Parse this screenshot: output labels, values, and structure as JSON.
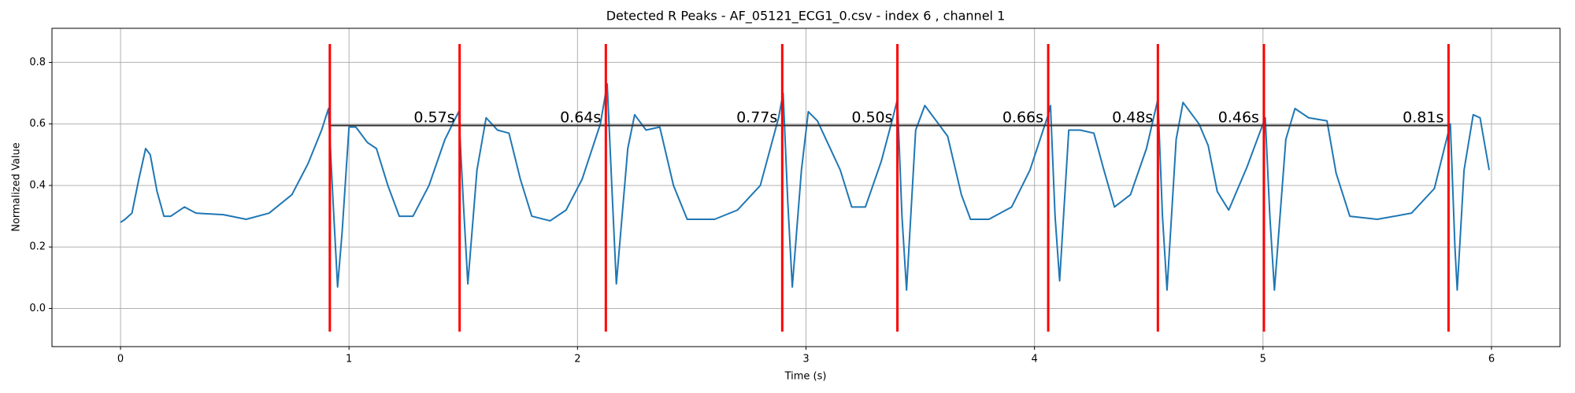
{
  "chart_data": {
    "type": "line",
    "title": "Detected R Peaks - AF_05121_ECG1_0.csv - index 6 , channel 1",
    "xlabel": "Time (s)",
    "ylabel": "Normalized Value",
    "xlim": [
      -0.3,
      6.3
    ],
    "ylim": [
      -0.124,
      0.911
    ],
    "xticks": [
      0,
      1,
      2,
      3,
      4,
      5,
      6
    ],
    "yticks": [
      {
        "value": 0,
        "label": "0.0"
      },
      0.2,
      0.4,
      0.6,
      0.8
    ],
    "grid": true,
    "series": [
      {
        "color": "#1f77b4",
        "x": [
          0,
          0.02,
          0.05,
          0.08,
          0.11,
          0.13,
          0.16,
          0.19,
          0.22,
          0.28,
          0.33,
          0.45,
          0.55,
          0.65,
          0.75,
          0.82,
          0.88,
          0.91,
          0.93,
          0.95,
          0.97,
          1.0,
          1.03,
          1.08,
          1.12,
          1.17,
          1.22,
          1.28,
          1.35,
          1.42,
          1.48,
          1.5,
          1.52,
          1.56,
          1.6,
          1.65,
          1.7,
          1.75,
          1.8,
          1.88,
          1.95,
          2.02,
          2.1,
          2.13,
          2.15,
          2.17,
          2.22,
          2.25,
          2.3,
          2.36,
          2.42,
          2.48,
          2.6,
          2.7,
          2.8,
          2.88,
          2.9,
          2.92,
          2.94,
          2.98,
          3.01,
          3.05,
          3.1,
          3.15,
          3.2,
          3.26,
          3.33,
          3.38,
          3.4,
          3.42,
          3.44,
          3.48,
          3.52,
          3.58,
          3.62,
          3.68,
          3.72,
          3.8,
          3.9,
          3.98,
          4.06,
          4.07,
          4.09,
          4.11,
          4.15,
          4.2,
          4.26,
          4.3,
          4.35,
          4.42,
          4.49,
          4.54,
          4.56,
          4.58,
          4.62,
          4.65,
          4.72,
          4.76,
          4.8,
          4.85,
          4.93,
          5.0,
          5.01,
          5.03,
          5.05,
          5.1,
          5.14,
          5.2,
          5.28,
          5.32,
          5.38,
          5.5,
          5.65,
          5.75,
          5.81,
          5.82,
          5.84,
          5.85,
          5.88,
          5.92,
          5.95,
          5.99
        ],
        "values": [
          0.28,
          0.29,
          0.31,
          0.42,
          0.52,
          0.5,
          0.38,
          0.3,
          0.3,
          0.33,
          0.31,
          0.305,
          0.29,
          0.31,
          0.37,
          0.47,
          0.58,
          0.65,
          0.35,
          0.07,
          0.25,
          0.59,
          0.59,
          0.54,
          0.52,
          0.4,
          0.3,
          0.3,
          0.4,
          0.55,
          0.64,
          0.35,
          0.08,
          0.45,
          0.62,
          0.58,
          0.57,
          0.42,
          0.3,
          0.285,
          0.32,
          0.42,
          0.6,
          0.73,
          0.4,
          0.08,
          0.52,
          0.63,
          0.58,
          0.59,
          0.4,
          0.29,
          0.29,
          0.32,
          0.4,
          0.62,
          0.7,
          0.35,
          0.07,
          0.45,
          0.64,
          0.61,
          0.53,
          0.45,
          0.33,
          0.33,
          0.48,
          0.62,
          0.68,
          0.3,
          0.06,
          0.58,
          0.66,
          0.6,
          0.56,
          0.37,
          0.29,
          0.29,
          0.33,
          0.45,
          0.63,
          0.66,
          0.3,
          0.09,
          0.58,
          0.58,
          0.57,
          0.46,
          0.33,
          0.37,
          0.52,
          0.68,
          0.3,
          0.06,
          0.55,
          0.67,
          0.6,
          0.53,
          0.38,
          0.32,
          0.46,
          0.6,
          0.62,
          0.3,
          0.06,
          0.55,
          0.65,
          0.62,
          0.61,
          0.44,
          0.3,
          0.29,
          0.31,
          0.39,
          0.57,
          0.6,
          0.2,
          0.06,
          0.45,
          0.63,
          0.62,
          0.45
        ]
      }
    ],
    "peaks": {
      "color": "#ff0000",
      "x": [
        0.916,
        1.484,
        2.124,
        2.896,
        3.4,
        4.06,
        4.54,
        5.004,
        5.812
      ],
      "ymin": -0.075,
      "ymax": 0.86
    },
    "intervals": {
      "line_y": 0.595,
      "label_y": 0.62,
      "values": [
        0.57,
        0.64,
        0.77,
        0.5,
        0.66,
        0.48,
        0.46,
        0.81
      ],
      "value_labels": [
        "0.57s",
        "0.64s",
        "0.77s",
        "0.50s",
        "0.66s",
        "0.48s",
        "0.46s",
        "0.81s"
      ]
    }
  }
}
